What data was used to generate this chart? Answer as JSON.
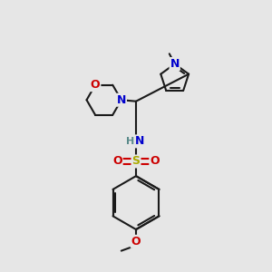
{
  "bg_color": "#e6e6e6",
  "bond_color": "#1a1a1a",
  "bond_width": 1.5,
  "atom_colors": {
    "N": "#0000cc",
    "O": "#cc0000",
    "S": "#aaaa00",
    "H": "#5a8a8a",
    "C": "#1a1a1a"
  }
}
